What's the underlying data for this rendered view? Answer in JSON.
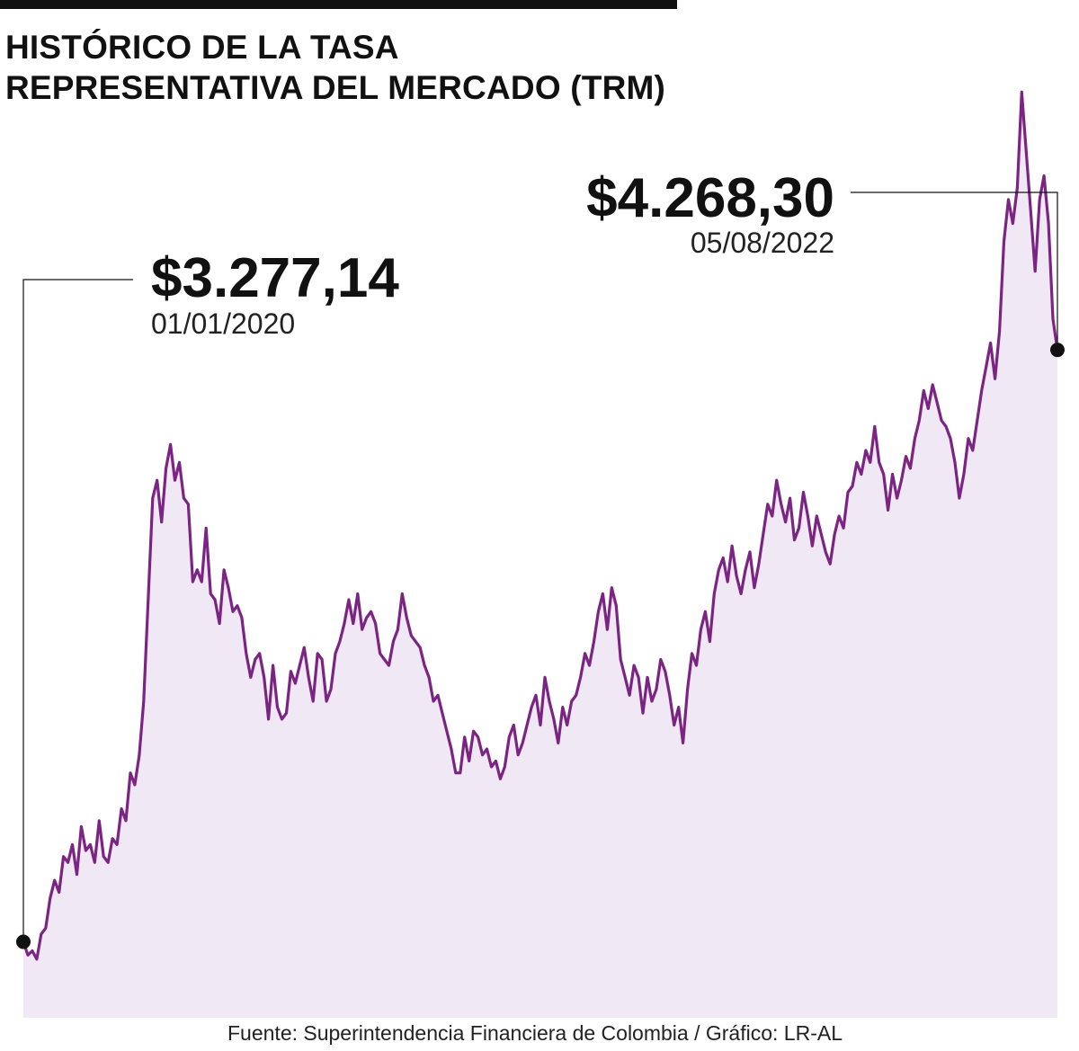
{
  "title": {
    "line1": "HISTÓRICO DE LA TASA",
    "line2": "REPRESENTATIVA DEL MERCADO (TRM)"
  },
  "source": "Fuente: Superintendencia Financiera de Colombia / Gráfico: LR-AL",
  "colors": {
    "line": "#7b2483",
    "fill": "#f1e8f5",
    "text": "#111111"
  },
  "chart_data": {
    "type": "area",
    "x_start": "01/01/2020",
    "x_end": "05/08/2022",
    "ylim": [
      3150,
      4800
    ],
    "grid": false,
    "annotations": [
      {
        "value_label": "$3.277,14",
        "date_label": "01/01/2020",
        "x": "01/01/2020",
        "y": 3277.14
      },
      {
        "value_label": "$4.268,30",
        "date_label": "05/08/2022",
        "x": "05/08/2022",
        "y": 4268.3
      }
    ],
    "series": [
      {
        "values": [
          3277.14,
          3255,
          3262,
          3248,
          3290,
          3300,
          3350,
          3380,
          3360,
          3420,
          3410,
          3440,
          3390,
          3470,
          3430,
          3440,
          3410,
          3480,
          3420,
          3410,
          3450,
          3440,
          3500,
          3480,
          3560,
          3540,
          3590,
          3680,
          3850,
          4020,
          4050,
          3980,
          4070,
          4110,
          4050,
          4080,
          4020,
          4010,
          3880,
          3900,
          3880,
          3970,
          3860,
          3850,
          3810,
          3900,
          3870,
          3830,
          3840,
          3820,
          3760,
          3720,
          3750,
          3760,
          3720,
          3650,
          3740,
          3670,
          3650,
          3660,
          3730,
          3710,
          3740,
          3770,
          3720,
          3680,
          3760,
          3750,
          3680,
          3700,
          3760,
          3780,
          3810,
          3850,
          3810,
          3860,
          3800,
          3820,
          3830,
          3810,
          3760,
          3750,
          3740,
          3780,
          3800,
          3860,
          3820,
          3790,
          3780,
          3770,
          3740,
          3720,
          3680,
          3690,
          3660,
          3630,
          3600,
          3560,
          3560,
          3620,
          3580,
          3630,
          3620,
          3590,
          3600,
          3570,
          3580,
          3550,
          3570,
          3620,
          3640,
          3590,
          3610,
          3640,
          3670,
          3690,
          3640,
          3720,
          3680,
          3650,
          3610,
          3670,
          3640,
          3680,
          3690,
          3720,
          3760,
          3740,
          3780,
          3830,
          3860,
          3800,
          3870,
          3840,
          3750,
          3720,
          3690,
          3740,
          3720,
          3660,
          3720,
          3680,
          3700,
          3750,
          3730,
          3690,
          3640,
          3670,
          3610,
          3700,
          3760,
          3740,
          3800,
          3830,
          3780,
          3860,
          3900,
          3920,
          3880,
          3940,
          3890,
          3860,
          3900,
          3930,
          3870,
          3910,
          3960,
          4010,
          3990,
          4050,
          4010,
          3980,
          4020,
          3950,
          3970,
          4030,
          3990,
          3940,
          3990,
          3960,
          3930,
          3910,
          3960,
          3990,
          3970,
          4030,
          4040,
          4080,
          4060,
          4100,
          4080,
          4140,
          4080,
          4060,
          4000,
          4060,
          4020,
          4050,
          4090,
          4070,
          4120,
          4150,
          4200,
          4170,
          4210,
          4180,
          4150,
          4140,
          4120,
          4080,
          4020,
          4060,
          4120,
          4100,
          4150,
          4200,
          4240,
          4280,
          4220,
          4300,
          4450,
          4520,
          4480,
          4540,
          4700,
          4600,
          4500,
          4400,
          4520,
          4560,
          4480,
          4320,
          4268.3
        ]
      }
    ]
  }
}
